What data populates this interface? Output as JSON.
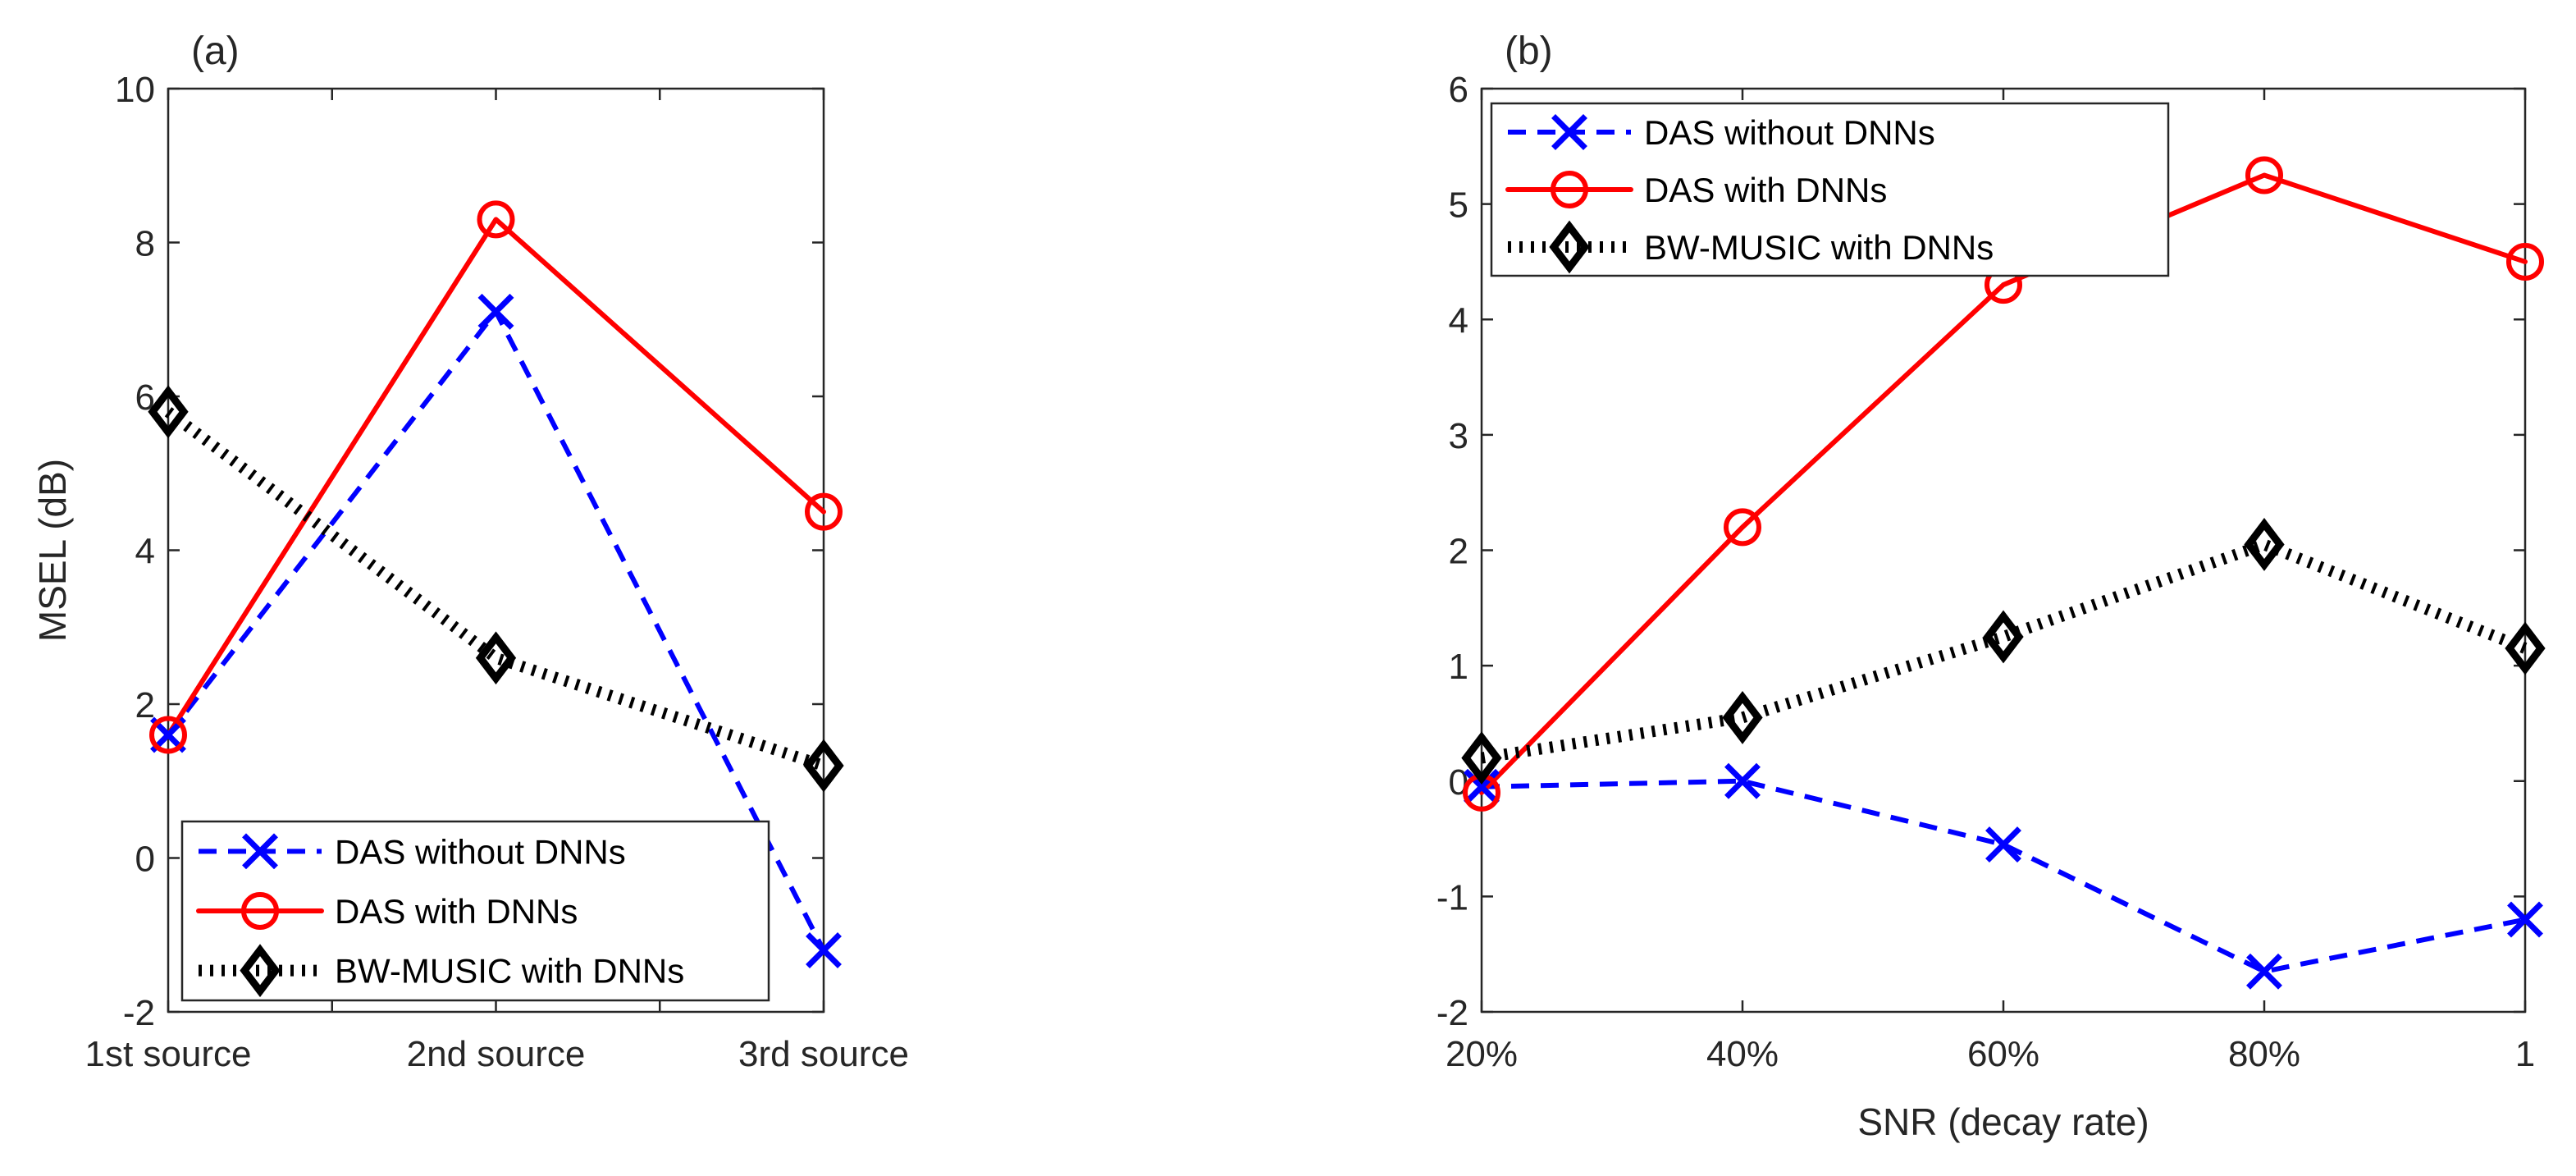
{
  "chart_data": [
    {
      "type": "line",
      "panel_label": "(a)",
      "title": "",
      "xlabel": "",
      "ylabel": "MSEL (dB)",
      "categories": [
        "1st source",
        "2nd source",
        "3rd source"
      ],
      "ylim": [
        -2,
        10
      ],
      "yticks": [
        "-2",
        "0",
        "2",
        "4",
        "6",
        "8",
        "10"
      ],
      "legend_position": "bottom-left",
      "grid": false,
      "series": [
        {
          "name": "DAS without DNNs",
          "color": "#0000ff",
          "style": "dashed",
          "marker": "x",
          "values": [
            1.6,
            7.1,
            -1.2
          ]
        },
        {
          "name": "DAS with DNNs",
          "color": "#ff0000",
          "style": "solid",
          "marker": "circle",
          "values": [
            1.6,
            8.3,
            4.5
          ]
        },
        {
          "name": "BW-MUSIC with DNNs",
          "color": "#000000",
          "style": "dotted",
          "marker": "diamond",
          "values": [
            5.8,
            2.6,
            1.2
          ]
        }
      ]
    },
    {
      "type": "line",
      "panel_label": "(b)",
      "title": "",
      "xlabel": "SNR (decay rate)",
      "ylabel": "",
      "categories": [
        "20%",
        "40%",
        "60%",
        "80%",
        "1"
      ],
      "ylim": [
        -2,
        6
      ],
      "yticks": [
        "-2",
        "-1",
        "0",
        "1",
        "2",
        "3",
        "4",
        "5",
        "6"
      ],
      "legend_position": "top-left",
      "grid": false,
      "series": [
        {
          "name": "DAS without DNNs",
          "color": "#0000ff",
          "style": "dashed",
          "marker": "x",
          "values": [
            -0.05,
            0.0,
            -0.55,
            -1.65,
            -1.2
          ]
        },
        {
          "name": "DAS with DNNs",
          "color": "#ff0000",
          "style": "solid",
          "marker": "circle",
          "values": [
            -0.1,
            2.2,
            4.3,
            5.25,
            4.5
          ]
        },
        {
          "name": "BW-MUSIC with DNNs",
          "color": "#000000",
          "style": "dotted",
          "marker": "diamond",
          "values": [
            0.2,
            0.55,
            1.25,
            2.05,
            1.15
          ]
        }
      ]
    }
  ]
}
